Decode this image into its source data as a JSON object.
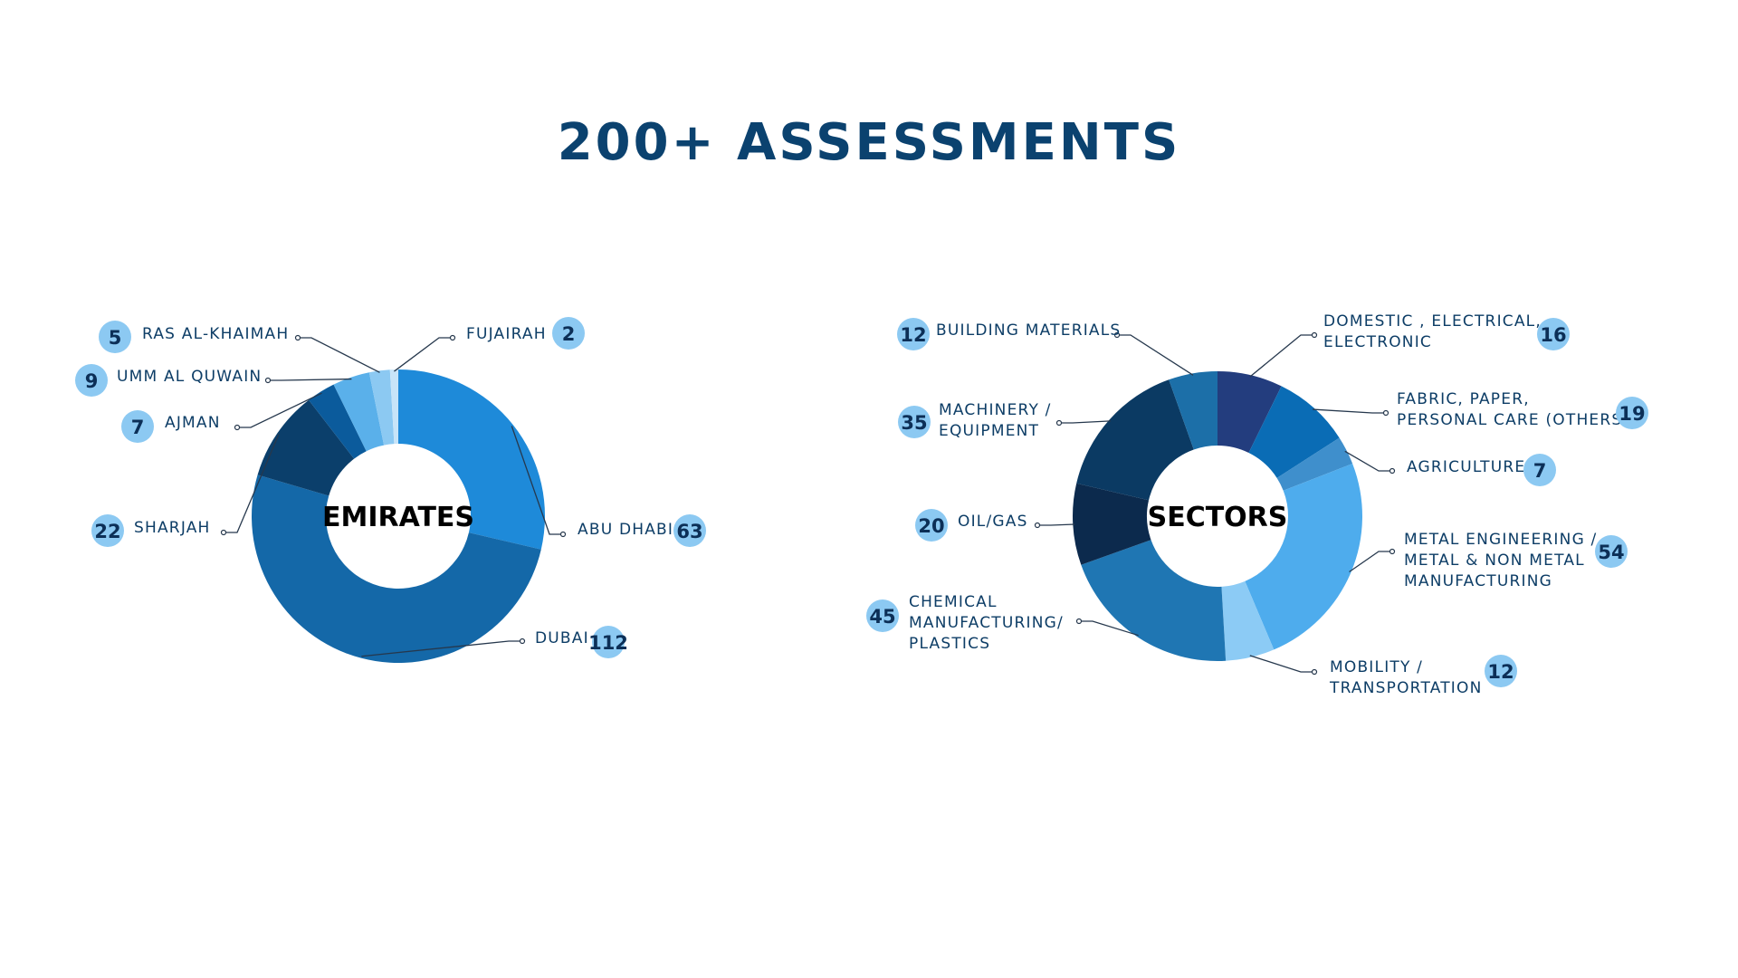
{
  "title": "200+ ASSESSMENTS",
  "chart_data": [
    {
      "type": "pie",
      "title": "EMIRATES",
      "start_angle": 0,
      "categories": [
        "ABU DHABI",
        "DUBAI",
        "SHARJAH",
        "AJMAN",
        "UMM AL QUWAIN",
        "RAS AL-KHAIMAH",
        "FUJAIRAH"
      ],
      "values": [
        63,
        112,
        22,
        7,
        9,
        5,
        2
      ],
      "colors": [
        "#1e8ad9",
        "#1468a8",
        "#0b3f6b",
        "#0b5b9c",
        "#5ab0ea",
        "#8cc9f2",
        "#c7e4f8"
      ],
      "labels": [
        {
          "text": [
            "ABU DHABI"
          ],
          "value": "63",
          "side": "right"
        },
        {
          "text": [
            "DUBAI"
          ],
          "value": "112",
          "side": "right"
        },
        {
          "text": [
            "SHARJAH"
          ],
          "value": "22",
          "side": "left"
        },
        {
          "text": [
            "AJMAN"
          ],
          "value": "7",
          "side": "left"
        },
        {
          "text": [
            "UMM AL QUWAIN"
          ],
          "value": "9",
          "side": "left"
        },
        {
          "text": [
            "RAS AL-KHAIMAH"
          ],
          "value": "5",
          "side": "left"
        },
        {
          "text": [
            "FUJAIRAH"
          ],
          "value": "2",
          "side": "right"
        }
      ]
    },
    {
      "type": "pie",
      "title": "SECTORS",
      "start_angle": 0,
      "categories": [
        "DOMESTIC , ELECTRICAL, ELECTRONIC",
        "FABRIC, PAPER, PERSONAL CARE (OTHERS)",
        "AGRICULTURE",
        "METAL ENGINEERING / METAL & NON METAL MANUFACTURING",
        "MOBILITY / TRANSPORTATION",
        "CHEMICAL MANUFACTURING/ PLASTICS",
        "OIL/GAS",
        "MACHINERY / EQUIPMENT",
        "BUILDING MATERIALS"
      ],
      "values": [
        16,
        19,
        7,
        54,
        12,
        45,
        20,
        35,
        12
      ],
      "colors": [
        "#233d7e",
        "#0a6cb5",
        "#3f8fcc",
        "#4eaced",
        "#8ccbf5",
        "#1f76b3",
        "#0c2a4d",
        "#0b3a63",
        "#1c6fa8"
      ],
      "labels": [
        {
          "text": [
            "DOMESTIC , ELECTRICAL,",
            "ELECTRONIC"
          ],
          "value": "16",
          "side": "right"
        },
        {
          "text": [
            "FABRIC, PAPER,",
            "PERSONAL CARE (OTHERS)"
          ],
          "value": "19",
          "side": "right"
        },
        {
          "text": [
            "AGRICULTURE"
          ],
          "value": "7",
          "side": "right"
        },
        {
          "text": [
            "METAL ENGINEERING /",
            "METAL & NON METAL",
            "MANUFACTURING"
          ],
          "value": "54",
          "side": "right"
        },
        {
          "text": [
            "MOBILITY /",
            "TRANSPORTATION"
          ],
          "value": "12",
          "side": "right"
        },
        {
          "text": [
            "CHEMICAL",
            "MANUFACTURING/",
            "PLASTICS"
          ],
          "value": "45",
          "side": "left"
        },
        {
          "text": [
            "OIL/GAS"
          ],
          "value": "20",
          "side": "left"
        },
        {
          "text": [
            "MACHINERY /",
            "EQUIPMENT"
          ],
          "value": "35",
          "side": "left"
        },
        {
          "text": [
            "BUILDING MATERIALS"
          ],
          "value": "12",
          "side": "left"
        }
      ]
    }
  ]
}
